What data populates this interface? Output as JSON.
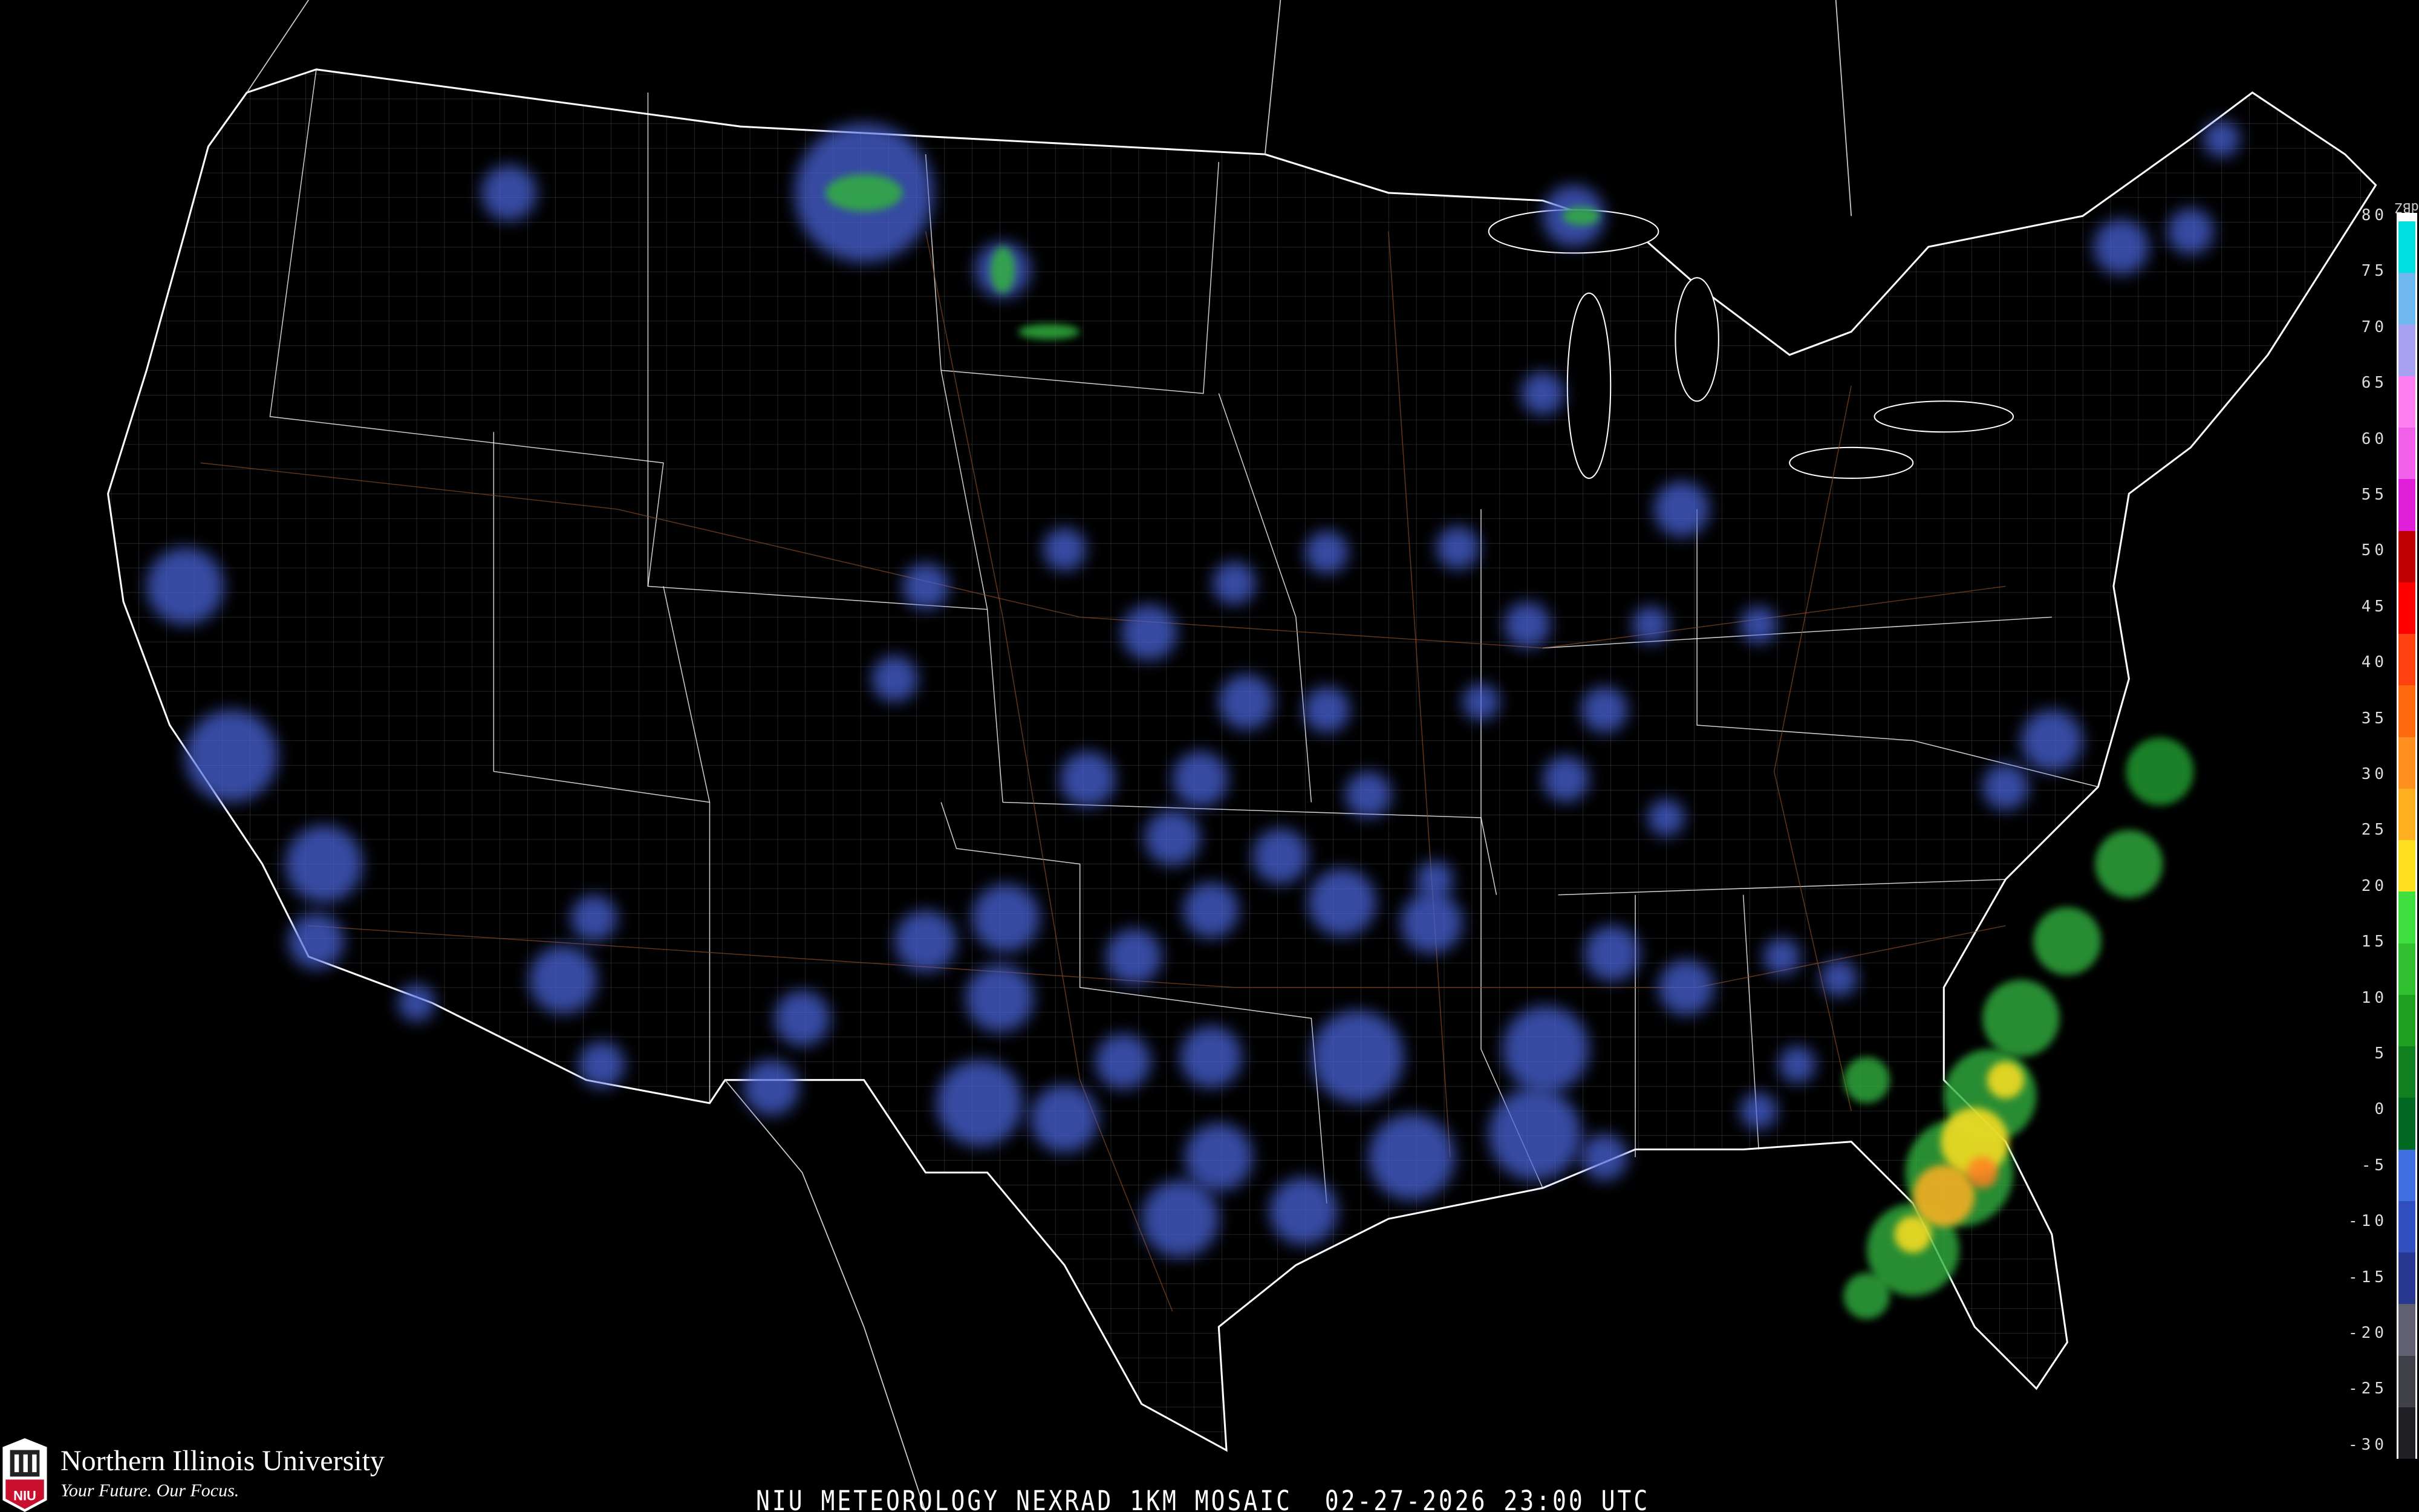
{
  "caption": "NIU METEOROLOGY NEXRAD 1KM MOSAIC  02-27-2026 23:00 UTC",
  "logo": {
    "name": "Northern Illinois University",
    "tagline": "Your Future. Our Focus.",
    "mark": "NIU"
  },
  "legend": {
    "unit": "dBZ",
    "labels": [
      "80",
      "75",
      "70",
      "65",
      "60",
      "55",
      "50",
      "45",
      "40",
      "35",
      "30",
      "25",
      "20",
      "15",
      "10",
      "5",
      "0",
      "-5",
      "-10",
      "-15",
      "-20",
      "-25",
      "-30"
    ],
    "colors": [
      "#00e0e0",
      "#70b8f0",
      "#a8a0f0",
      "#ff80f0",
      "#f060e8",
      "#e020d8",
      "#c00000",
      "#ff0000",
      "#ff4010",
      "#ff6a10",
      "#ff9020",
      "#ffb020",
      "#ffe020",
      "#40e040",
      "#30c030",
      "#20a020",
      "#108020",
      "#006820",
      "#4070e0",
      "#3050c0",
      "#283890",
      "#606070",
      "#404048",
      "#202024"
    ]
  },
  "map": {
    "background": "#000000",
    "border_color": "#ffffff",
    "county_color": "#6a6a6a",
    "road_color": "#8a4a20"
  }
}
